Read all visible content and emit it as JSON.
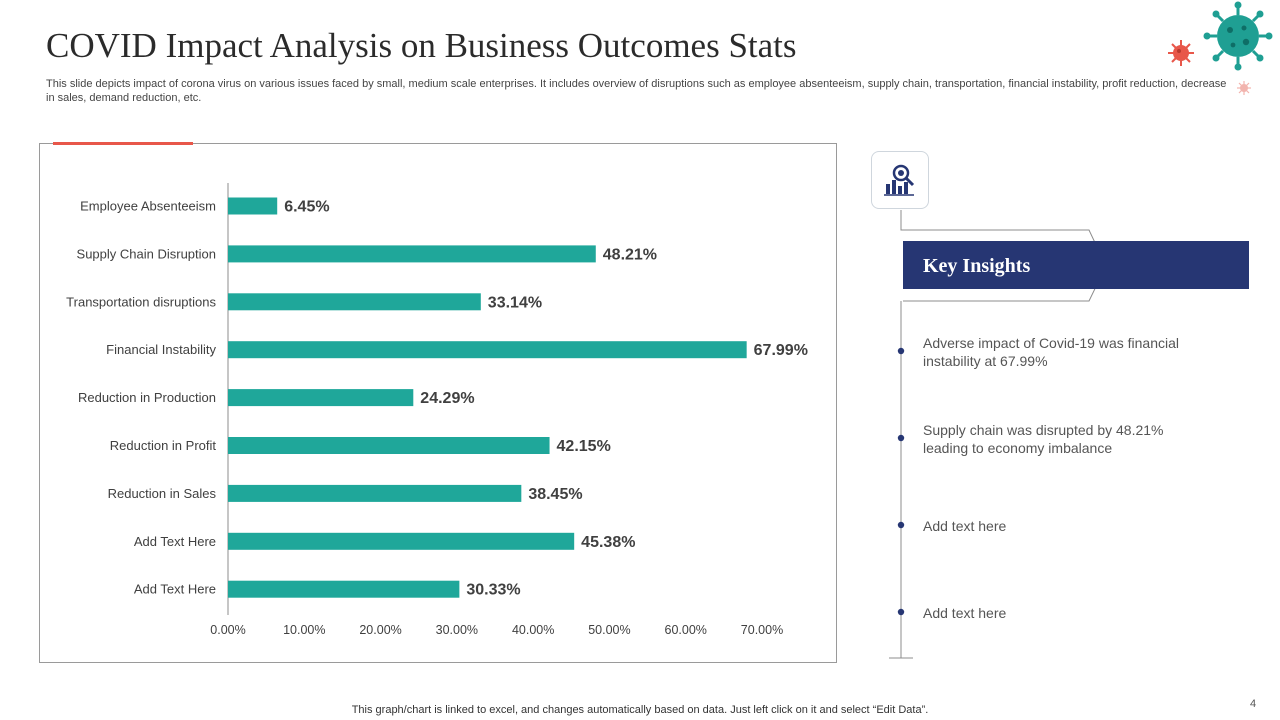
{
  "slide": {
    "title": "COVID Impact Analysis on Business Outcomes Stats",
    "subtitle": "This slide depicts impact of corona virus on various issues faced by small, medium scale enterprises. It includes overview of disruptions such as employee absenteeism, supply chain, transportation, financial instability, profit reduction, decrease in sales, demand reduction, etc.",
    "footer": "This graph/chart is linked to excel,  and changes automatically based on data. Just left click on it and select “Edit Data”.",
    "page_number": "4"
  },
  "colors": {
    "bar": "#1fa79a",
    "accent": "#e8574a",
    "navy": "#263673",
    "virus": "#1f9f93"
  },
  "chart_data": {
    "type": "bar",
    "orientation": "horizontal",
    "categories": [
      "Employee Absenteeism",
      "Supply Chain Disruption",
      "Transportation disruptions",
      "Financial Instability",
      "Reduction in Production",
      "Reduction in Profit",
      "Reduction in Sales",
      "Add Text Here",
      "Add Text Here"
    ],
    "values": [
      6.45,
      48.21,
      33.14,
      67.99,
      24.29,
      42.15,
      38.45,
      45.38,
      30.33
    ],
    "value_labels": [
      "6.45%",
      "48.21%",
      "33.14%",
      "67.99%",
      "24.29%",
      "42.15%",
      "38.45%",
      "45.38%",
      "30.33%"
    ],
    "xlim": [
      0,
      70
    ],
    "x_ticks": [
      0,
      10,
      20,
      30,
      40,
      50,
      60,
      70
    ],
    "x_tick_labels": [
      "0.00%",
      "10.00%",
      "20.00%",
      "30.00%",
      "40.00%",
      "50.00%",
      "60.00%",
      "70.00%"
    ],
    "title": "",
    "xlabel": "",
    "ylabel": "",
    "grid": false
  },
  "insights": {
    "title": "Key Insights",
    "icon": "chart-magnifier-icon",
    "items": [
      "Adverse impact of Covid-19 was financial instability at 67.99%",
      "Supply chain was disrupted by 48.21% leading to economy imbalance",
      "Add text here",
      "Add text here"
    ]
  }
}
